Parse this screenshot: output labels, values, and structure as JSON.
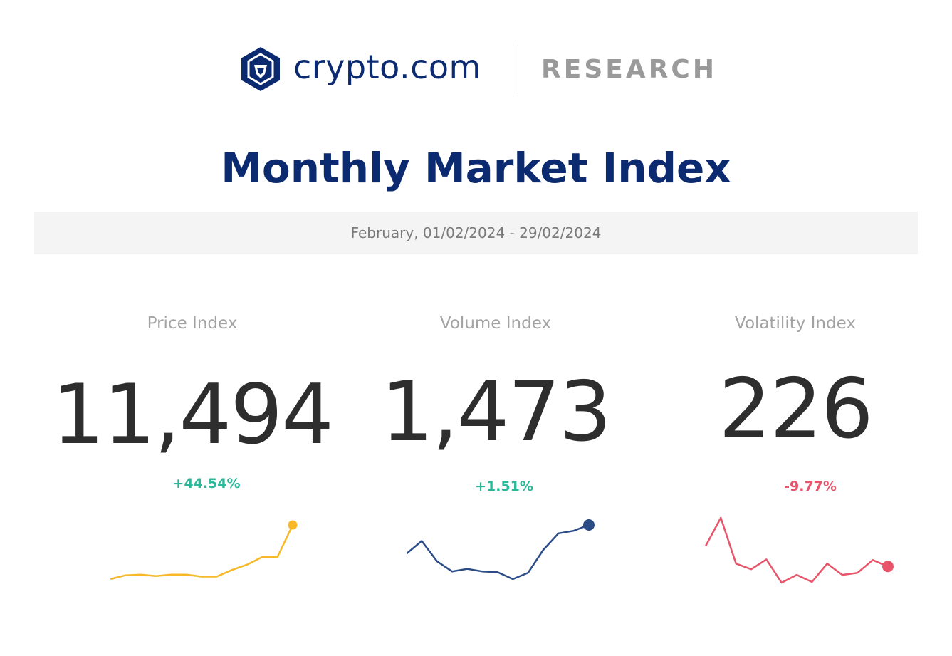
{
  "header": {
    "brand": "crypto.com",
    "section": "RESEARCH",
    "logo_icon": "crypto-lion-hexagon-icon",
    "brand_color": "#0b2a6f"
  },
  "title": "Monthly Market Index",
  "period": "February, 01/02/2024 - 29/02/2024",
  "colors": {
    "positive": "#2bb89a",
    "negative": "#e8546a",
    "price_line": "#f7b928",
    "volume_line": "#2b4c86",
    "volatility_line": "#e8546a"
  },
  "indices": [
    {
      "label": "Price Index",
      "value": "11,494",
      "change": "+44.54%",
      "direction": "up"
    },
    {
      "label": "Volume Index",
      "value": "1,473",
      "change": "+1.51%",
      "direction": "up"
    },
    {
      "label": "Volatility Index",
      "value": "226",
      "change": "-9.77%",
      "direction": "down"
    }
  ],
  "chart_data": [
    {
      "type": "line",
      "series": [
        {
          "values": [
            7955,
            8200,
            8250,
            8150,
            8250,
            8250,
            8120,
            8120,
            8550,
            8900,
            9400,
            9400,
            11494
          ]
        }
      ],
      "title": "",
      "xlabel": "",
      "ylabel": "",
      "grid": false
    },
    {
      "type": "line",
      "series": [
        {
          "values": [
            1360,
            1410,
            1330,
            1290,
            1300,
            1290,
            1287,
            1260,
            1285,
            1375,
            1440,
            1450,
            1473
          ]
        }
      ],
      "title": "",
      "xlabel": "",
      "ylabel": "",
      "grid": false
    },
    {
      "type": "line",
      "series": [
        {
          "values": [
            255,
            295,
            230,
            222,
            236,
            203,
            214,
            204,
            230,
            214,
            217,
            235,
            226
          ]
        }
      ],
      "title": "",
      "xlabel": "",
      "ylabel": "",
      "grid": false
    }
  ]
}
